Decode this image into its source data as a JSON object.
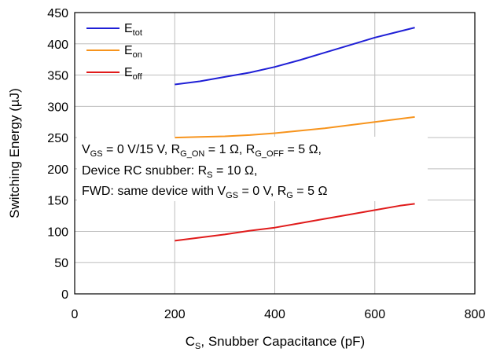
{
  "chart_data": {
    "type": "line",
    "xlabel": "C",
    "xlabel_sub": "S",
    "xlabel_rest": ", Snubber Capacitance (pF)",
    "ylabel": "Switching Energy (µJ)",
    "xlim": [
      0,
      800
    ],
    "ylim": [
      0,
      450
    ],
    "xticks": [
      0,
      200,
      400,
      600,
      800
    ],
    "yticks": [
      0,
      50,
      100,
      150,
      200,
      250,
      300,
      350,
      400,
      450
    ],
    "grid": true,
    "legend": "top-left",
    "series": [
      {
        "name": "E",
        "name_sub": "tot",
        "color": "#1f1fd6",
        "x": [
          200,
          250,
          300,
          350,
          400,
          450,
          500,
          550,
          600,
          650,
          680
        ],
        "y": [
          335,
          340,
          347,
          354,
          363,
          374,
          386,
          398,
          410,
          420,
          426
        ]
      },
      {
        "name": "E",
        "name_sub": "on",
        "color": "#f7941d",
        "x": [
          200,
          250,
          300,
          350,
          400,
          450,
          500,
          550,
          600,
          650,
          680
        ],
        "y": [
          250,
          251,
          252,
          254,
          257,
          261,
          265,
          270,
          275,
          280,
          283
        ]
      },
      {
        "name": "E",
        "name_sub": "off",
        "color": "#e01b1b",
        "x": [
          200,
          250,
          300,
          350,
          400,
          450,
          500,
          550,
          600,
          650,
          680
        ],
        "y": [
          85,
          90,
          95,
          101,
          106,
          113,
          120,
          127,
          134,
          141,
          144
        ]
      }
    ],
    "annotation": {
      "line1": [
        {
          "t": "V"
        },
        {
          "s": "GS"
        },
        {
          "t": " = 0 V/15 V, R"
        },
        {
          "s": "G_ON"
        },
        {
          "t": " = 1 Ω, R"
        },
        {
          "s": "G_OFF"
        },
        {
          "t": " = 5 Ω,"
        }
      ],
      "line2": [
        {
          "t": "Device RC snubber: R"
        },
        {
          "s": "S"
        },
        {
          "t": " = 10 Ω,"
        }
      ],
      "line3": [
        {
          "t": "FWD: same device with V"
        },
        {
          "s": "GS"
        },
        {
          "t": " = 0 V, R"
        },
        {
          "s": "G"
        },
        {
          "t": " = 5 Ω"
        }
      ]
    }
  }
}
